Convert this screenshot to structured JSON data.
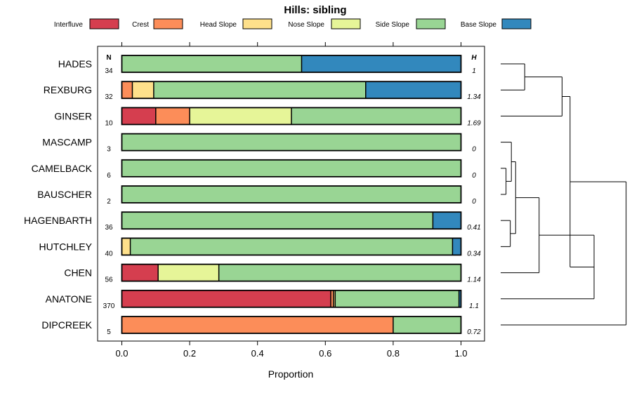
{
  "chart_data": {
    "type": "bar",
    "orientation": "horizontal",
    "stacked": true,
    "title": "Hills: sibling",
    "xlabel": "Proportion",
    "ylabel": "",
    "xlim": [
      0,
      1
    ],
    "xticks": [
      "0.0",
      "0.2",
      "0.4",
      "0.6",
      "0.8",
      "1.0"
    ],
    "xtick_values": [
      0,
      0.2,
      0.4,
      0.6,
      0.8,
      1.0
    ],
    "n_header": "N",
    "h_header": "H",
    "legend_position": "top",
    "legend": [
      {
        "name": "Interfluve",
        "color": "#d53e4f"
      },
      {
        "name": "Crest",
        "color": "#fc8d59"
      },
      {
        "name": "Head Slope",
        "color": "#fee08b"
      },
      {
        "name": "Nose Slope",
        "color": "#e6f598"
      },
      {
        "name": "Side Slope",
        "color": "#99d594"
      },
      {
        "name": "Base Slope",
        "color": "#3288bd"
      }
    ],
    "categories": [
      "HADES",
      "REXBURG",
      "GINSER",
      "MASCAMP",
      "CAMELBACK",
      "BAUSCHER",
      "HAGENBARTH",
      "HUTCHLEY",
      "CHEN",
      "ANATONE",
      "DIPCREEK"
    ],
    "n_values": [
      "34",
      "32",
      "10",
      "3",
      "6",
      "2",
      "36",
      "40",
      "56",
      "370",
      "5"
    ],
    "h_values": [
      "1",
      "1.34",
      "1.69",
      "0",
      "0",
      "0",
      "0.41",
      "0.34",
      "1.14",
      "1.1",
      "0.72"
    ],
    "series": [
      {
        "name": "Interfluve",
        "values": [
          0,
          0,
          0.1,
          0,
          0,
          0,
          0,
          0,
          0.107,
          0.616,
          0
        ]
      },
      {
        "name": "Crest",
        "values": [
          0,
          0.031,
          0.1,
          0,
          0,
          0,
          0,
          0,
          0,
          0.008,
          0.8
        ]
      },
      {
        "name": "Head Slope",
        "values": [
          0,
          0.063,
          0,
          0,
          0,
          0,
          0,
          0.025,
          0,
          0.005,
          0
        ]
      },
      {
        "name": "Nose Slope",
        "values": [
          0,
          0,
          0.3,
          0,
          0,
          0,
          0,
          0,
          0.179,
          0,
          0
        ]
      },
      {
        "name": "Side Slope",
        "values": [
          0.53,
          0.625,
          0.5,
          1.0,
          1.0,
          1.0,
          0.917,
          0.95,
          0.714,
          0.365,
          0.2
        ]
      },
      {
        "name": "Base Slope",
        "values": [
          0.47,
          0.281,
          0,
          0,
          0,
          0,
          0.083,
          0.025,
          0,
          0.006,
          0
        ]
      }
    ],
    "dendrogram": {
      "description": "hierarchical clustering of hills",
      "merges": [
        {
          "a": "BAUSCHER",
          "b": "CAMELBACK",
          "height": 0.1
        },
        {
          "a": "MASCAMP",
          "b": "CAMELBACK+BAUSCHER",
          "height": 0.2
        },
        {
          "a": "HAGENBARTH",
          "b": "HUTCHLEY",
          "height": 0.18
        },
        {
          "a": "MASCAMP+CAMELBACK+BAUSCHER",
          "b": "HAGENBARTH+HUTCHLEY",
          "height": 0.28
        },
        {
          "a": "HADES",
          "b": "REXBURG",
          "height": 0.45
        },
        {
          "a": "HADES+REXBURG",
          "b": "GINSER",
          "height": 1.15
        },
        {
          "a": "MASCAMP..HUTCHLEY",
          "b": "CHEN",
          "height": 0.72
        },
        {
          "a": "MASCAMP..CHEN",
          "b": "ANATONE",
          "height": 1.75
        },
        {
          "a": "HADES+REXBURG+GINSER",
          "b": "MASCAMP..ANATONE",
          "height": 1.3
        },
        {
          "a": "HADES..ANATONE",
          "b": "DIPCREEK",
          "height": 2.35
        }
      ]
    }
  }
}
